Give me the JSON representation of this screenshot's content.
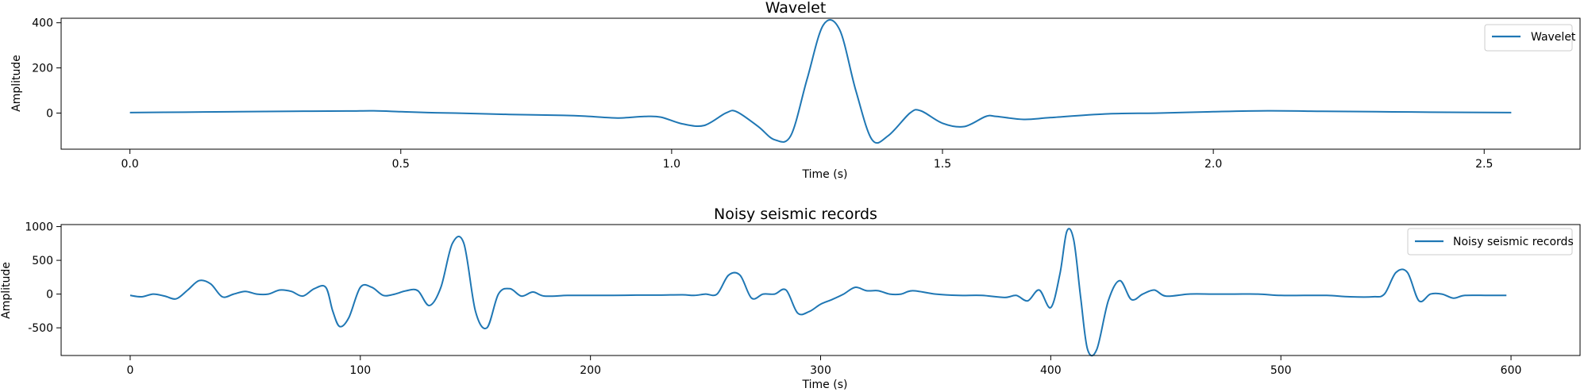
{
  "chart_data": [
    {
      "type": "line",
      "title": "Wavelet",
      "xlabel": "Time (s)",
      "ylabel": "Amplitude",
      "xlim": [
        -0.127,
        2.677
      ],
      "ylim": [
        -160,
        420
      ],
      "xticks": [
        0.0,
        0.5,
        1.0,
        1.5,
        2.0,
        2.5
      ],
      "xtick_labels": [
        "0.0",
        "0.5",
        "1.0",
        "1.5",
        "2.0",
        "2.5"
      ],
      "yticks": [
        0,
        200,
        400
      ],
      "ytick_labels": [
        "0",
        "200",
        "400"
      ],
      "grid": false,
      "legend_position": "upper right",
      "series": [
        {
          "name": "Wavelet",
          "color": "#1f77b4",
          "x": [
            0.0,
            0.1,
            0.2,
            0.3,
            0.4,
            0.45,
            0.5,
            0.55,
            0.6,
            0.7,
            0.8,
            0.85,
            0.9,
            0.95,
            0.98,
            1.02,
            1.06,
            1.1,
            1.12,
            1.16,
            1.19,
            1.22,
            1.25,
            1.28,
            1.31,
            1.34,
            1.37,
            1.4,
            1.44,
            1.46,
            1.5,
            1.54,
            1.58,
            1.6,
            1.65,
            1.7,
            1.8,
            1.9,
            2.0,
            2.1,
            2.2,
            2.3,
            2.4,
            2.55
          ],
          "y": [
            2,
            4,
            6,
            8,
            9,
            10,
            6,
            2,
            0,
            -6,
            -10,
            -15,
            -22,
            -15,
            -18,
            -48,
            -55,
            0,
            6,
            -60,
            -118,
            -100,
            150,
            390,
            370,
            100,
            -118,
            -100,
            0,
            10,
            -45,
            -60,
            -15,
            -15,
            -28,
            -20,
            -4,
            0,
            6,
            10,
            8,
            6,
            4,
            2
          ]
        }
      ]
    },
    {
      "type": "line",
      "title": "Noisy seismic records",
      "xlabel": "Time (s)",
      "ylabel": "Amplitude",
      "xlim": [
        -30,
        630
      ],
      "ylim": [
        -910,
        1030
      ],
      "xticks": [
        0,
        100,
        200,
        300,
        400,
        500,
        600
      ],
      "xtick_labels": [
        "0",
        "100",
        "200",
        "300",
        "400",
        "500",
        "600"
      ],
      "yticks": [
        -500,
        0,
        500,
        1000
      ],
      "ytick_labels": [
        "-500",
        "0",
        "500",
        "1000"
      ],
      "grid": false,
      "legend_position": "upper right",
      "series": [
        {
          "name": "Noisy seismic records",
          "color": "#1f77b4",
          "x": [
            0,
            5,
            10,
            15,
            20,
            25,
            30,
            35,
            40,
            45,
            50,
            55,
            60,
            65,
            70,
            75,
            80,
            85,
            88,
            91,
            95,
            100,
            105,
            110,
            115,
            120,
            125,
            130,
            135,
            140,
            145,
            150,
            155,
            160,
            165,
            170,
            175,
            180,
            190,
            200,
            210,
            220,
            230,
            240,
            245,
            250,
            255,
            260,
            265,
            270,
            275,
            280,
            285,
            290,
            295,
            300,
            305,
            310,
            315,
            320,
            325,
            330,
            335,
            340,
            350,
            360,
            370,
            380,
            385,
            390,
            395,
            400,
            404,
            407,
            410,
            413,
            416,
            420,
            425,
            430,
            435,
            440,
            445,
            450,
            460,
            470,
            480,
            490,
            500,
            510,
            520,
            530,
            540,
            545,
            550,
            555,
            560,
            565,
            570,
            575,
            580,
            590,
            598
          ],
          "y": [
            -20,
            -40,
            0,
            -30,
            -70,
            60,
            200,
            150,
            -40,
            0,
            40,
            0,
            0,
            60,
            40,
            -30,
            80,
            100,
            -250,
            -480,
            -350,
            100,
            100,
            -20,
            0,
            50,
            50,
            -170,
            100,
            750,
            750,
            -250,
            -500,
            0,
            80,
            -30,
            30,
            -30,
            -20,
            -20,
            -20,
            -15,
            -15,
            -10,
            -20,
            0,
            0,
            280,
            280,
            -60,
            0,
            0,
            60,
            -280,
            -260,
            -150,
            -80,
            0,
            100,
            50,
            50,
            0,
            0,
            50,
            0,
            -20,
            -20,
            -50,
            -20,
            -100,
            60,
            -200,
            300,
            930,
            800,
            -50,
            -820,
            -820,
            -100,
            200,
            -80,
            0,
            60,
            -30,
            0,
            0,
            0,
            0,
            -20,
            -20,
            -20,
            -40,
            -40,
            0,
            320,
            320,
            -100,
            0,
            0,
            -60,
            -20,
            -20,
            -20
          ]
        }
      ]
    }
  ]
}
